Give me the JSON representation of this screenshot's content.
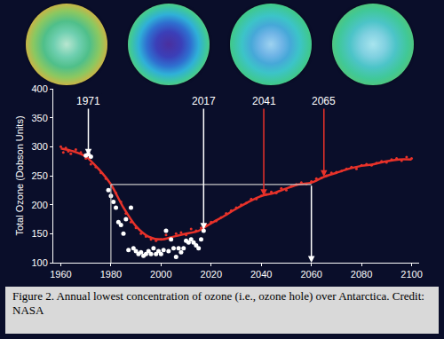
{
  "chart_data": {
    "type": "scatter",
    "ylabel": "Total Ozone (Dobson Units)",
    "xlim": [
      1957,
      2103
    ],
    "xticks": [
      1960,
      1980,
      2000,
      2020,
      2040,
      2060,
      2080,
      2100
    ],
    "ylim": [
      100,
      400
    ],
    "yticks": [
      100,
      150,
      200,
      250,
      300,
      350,
      400
    ],
    "grid": false,
    "series": [
      {
        "type": "line",
        "color": "#e8322a",
        "marker": "none",
        "line_style": "solid",
        "x": [
          1960,
          1965,
          1970,
          1975,
          1980,
          1985,
          1990,
          1995,
          2000,
          2005,
          2010,
          2015,
          2020,
          2025,
          2030,
          2035,
          2040,
          2045,
          2050,
          2055,
          2060,
          2065,
          2070,
          2075,
          2080,
          2085,
          2090,
          2095,
          2100
        ],
        "values": [
          297,
          292,
          283,
          262,
          235,
          195,
          163,
          145,
          140,
          145,
          150,
          155,
          168,
          180,
          193,
          205,
          215,
          220,
          228,
          235,
          238,
          248,
          255,
          262,
          267,
          270,
          275,
          278,
          278
        ]
      },
      {
        "type": "scatter",
        "color": "#e8322a",
        "marker": "dot",
        "line_style": "none",
        "x": [
          1960,
          1961,
          1962,
          1963,
          1964,
          1966,
          1968,
          1970,
          1972,
          1974,
          1976,
          1978,
          1982,
          1984,
          1986,
          1988,
          1990,
          1992,
          1994,
          1996,
          1998,
          2000,
          2002,
          2004,
          2006,
          2008,
          2010,
          2012,
          2014,
          2016,
          2018,
          2020,
          2022,
          2024,
          2026,
          2028,
          2030,
          2032,
          2034,
          2036,
          2038,
          2040,
          2042,
          2044,
          2046,
          2048,
          2050,
          2052,
          2054,
          2056,
          2058,
          2060,
          2062,
          2064,
          2066,
          2068,
          2070,
          2072,
          2074,
          2076,
          2078,
          2080,
          2082,
          2084,
          2086,
          2088,
          2090,
          2092,
          2094,
          2096,
          2098,
          2100
        ],
        "values": [
          300,
          290,
          298,
          292,
          288,
          295,
          290,
          280,
          270,
          265,
          255,
          245,
          220,
          205,
          185,
          170,
          160,
          150,
          145,
          140,
          138,
          140,
          148,
          142,
          150,
          152,
          148,
          158,
          155,
          160,
          165,
          170,
          172,
          178,
          185,
          190,
          195,
          200,
          203,
          210,
          210,
          215,
          218,
          222,
          220,
          228,
          225,
          232,
          235,
          238,
          236,
          240,
          245,
          246,
          250,
          255,
          256,
          258,
          262,
          265,
          262,
          268,
          270,
          268,
          272,
          275,
          273,
          278,
          280,
          276,
          282,
          280
        ]
      },
      {
        "type": "scatter",
        "color": "#ffffff",
        "marker": "circle",
        "line_style": "none",
        "x": [
          1970,
          1971,
          1972,
          1979,
          1980,
          1981,
          1982,
          1983,
          1984,
          1985,
          1986,
          1987,
          1988,
          1989,
          1990,
          1991,
          1992,
          1993,
          1994,
          1995,
          1996,
          1997,
          1998,
          1999,
          2000,
          2001,
          2002,
          2003,
          2004,
          2005,
          2006,
          2007,
          2008,
          2009,
          2010,
          2011,
          2012,
          2013,
          2014,
          2015,
          2016,
          2017
        ],
        "values": [
          285,
          287,
          283,
          225,
          215,
          205,
          195,
          170,
          165,
          150,
          175,
          122,
          195,
          125,
          120,
          115,
          118,
          112,
          115,
          120,
          115,
          125,
          115,
          120,
          115,
          122,
          155,
          120,
          140,
          125,
          110,
          125,
          118,
          125,
          138,
          135,
          140,
          135,
          130,
          125,
          140,
          155
        ]
      }
    ],
    "recovery": {
      "x": [
        1980,
        2060
      ],
      "y": 235
    },
    "annotations": [
      {
        "text": "1971",
        "x": 1971,
        "y": 285,
        "color": "#ffffff"
      },
      {
        "text": "2017",
        "x": 2017,
        "y": 157,
        "color": "#ffffff"
      },
      {
        "text": "2041",
        "x": 2041,
        "y": 215,
        "color": "#e8322a"
      },
      {
        "text": "2065",
        "x": 2065,
        "y": 248,
        "color": "#e8322a"
      }
    ]
  },
  "caption": "Figure 2. Annual lowest concentration of ozone (i.e., ozone hole) over Antarctica. Credit: NASA"
}
